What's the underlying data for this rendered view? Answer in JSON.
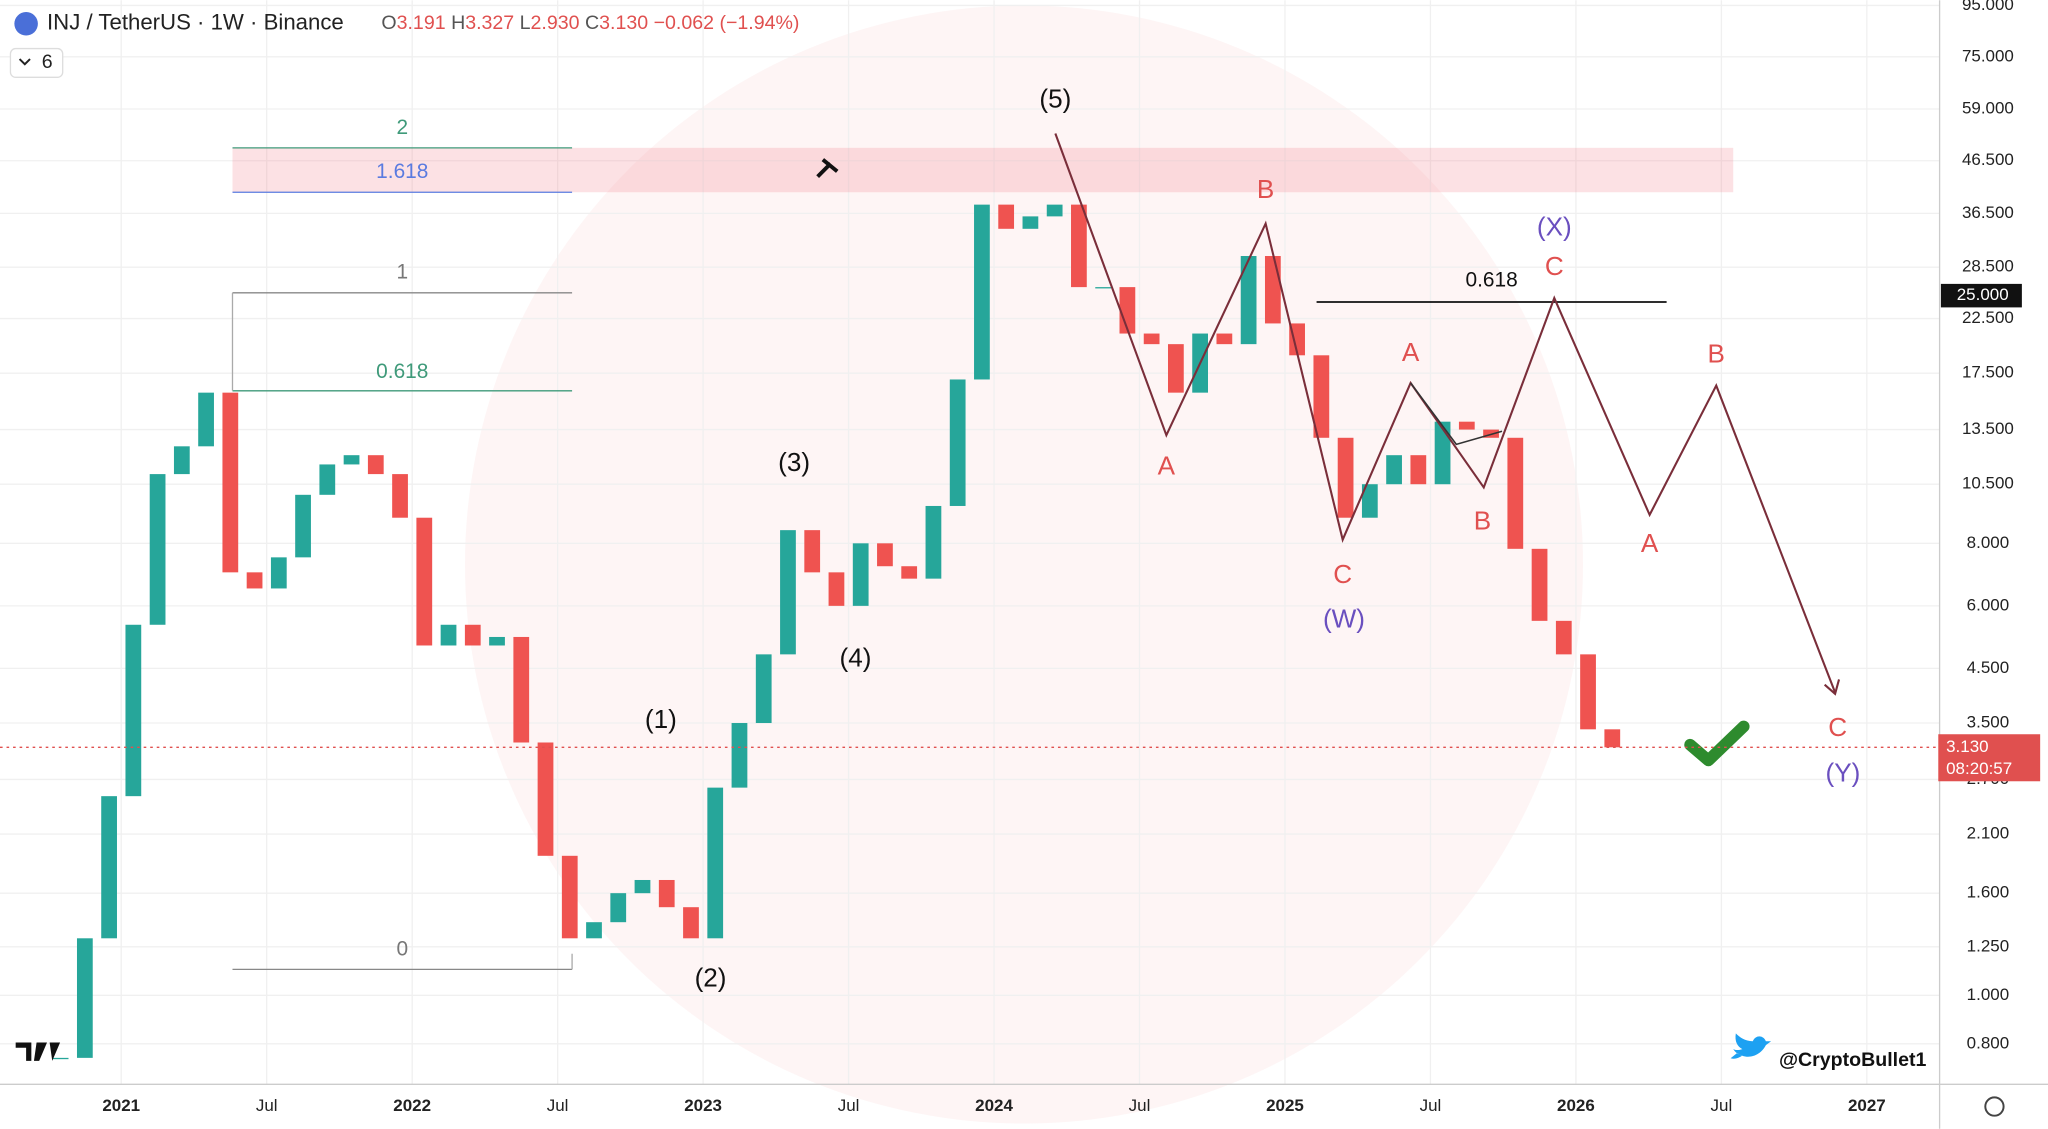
{
  "header": {
    "symbol": "INJ / TetherUS · 1W · Binance",
    "ohlc": [
      {
        "key": "O",
        "value": "3.191"
      },
      {
        "key": "H",
        "value": "3.327"
      },
      {
        "key": "L",
        "value": "2.930"
      },
      {
        "key": "C",
        "value": "3.130"
      }
    ],
    "change": "−0.062 (−1.94%)",
    "indicators": "6"
  },
  "chart_data": {
    "type": "candlestick",
    "log_scale": true,
    "x": [
      "2020-10",
      "2020-11",
      "2020-12",
      "2021-01",
      "2021-02",
      "2021-03",
      "2021-04",
      "2021-05",
      "2021-06",
      "2021-07",
      "2021-08",
      "2021-09",
      "2021-10",
      "2021-11",
      "2021-12",
      "2022-01",
      "2022-02",
      "2022-03",
      "2022-04",
      "2022-05",
      "2022-06",
      "2022-07",
      "2022-08",
      "2022-09",
      "2022-10",
      "2022-11",
      "2022-12",
      "2023-01",
      "2023-02",
      "2023-03",
      "2023-04",
      "2023-05",
      "2023-06",
      "2023-07",
      "2023-08",
      "2023-09",
      "2023-10",
      "2023-11",
      "2023-12",
      "2024-01",
      "2024-02",
      "2024-03",
      "2024-04",
      "2024-05",
      "2024-06",
      "2024-07",
      "2024-08",
      "2024-09",
      "2024-10",
      "2024-11",
      "2024-12",
      "2025-01",
      "2025-02",
      "2025-03",
      "2025-04",
      "2025-05",
      "2025-06",
      "2025-07",
      "2025-08",
      "2025-09",
      "2025-10",
      "2025-11",
      "2025-12",
      "2026-01",
      "2026-02"
    ],
    "close": [
      0.75,
      1.3,
      2.5,
      5.5,
      11,
      12.5,
      16,
      7,
      6.5,
      7.5,
      10,
      11.5,
      12,
      11,
      9,
      5,
      5.5,
      5,
      5.2,
      3.2,
      1.9,
      1.3,
      1.4,
      1.6,
      1.7,
      1.5,
      1.3,
      2.6,
      3.5,
      4.8,
      8.5,
      7,
      6,
      8,
      7.2,
      6.8,
      9.5,
      17,
      38,
      34,
      36,
      38,
      26,
      26,
      21,
      20,
      16,
      21,
      20,
      30,
      22,
      19,
      13,
      9,
      10.5,
      12,
      10.5,
      14,
      13.5,
      13,
      7.8,
      5.6,
      4.8,
      3.4,
      3.13
    ],
    "up_color": "#26a69a",
    "down_color": "#ef5350",
    "xlim": [
      "2020-08",
      "2027-04"
    ],
    "ylim": [
      0.664,
      97.3
    ],
    "yticks": [
      {
        "value": 95,
        "label": "95.000"
      },
      {
        "value": 75,
        "label": "75.000"
      },
      {
        "value": 59,
        "label": "59.000"
      },
      {
        "value": 46.5,
        "label": "46.500"
      },
      {
        "value": 36.5,
        "label": "36.500"
      },
      {
        "value": 28.5,
        "label": "28.500"
      },
      {
        "value": 22.5,
        "label": "22.500"
      },
      {
        "value": 17.5,
        "label": "17.500"
      },
      {
        "value": 13.5,
        "label": "13.500"
      },
      {
        "value": 10.5,
        "label": "10.500"
      },
      {
        "value": 8,
        "label": "8.000"
      },
      {
        "value": 6,
        "label": "6.000"
      },
      {
        "value": 4.5,
        "label": "4.500"
      },
      {
        "value": 3.5,
        "label": "3.500"
      },
      {
        "value": 2.7,
        "label": "2.700"
      },
      {
        "value": 2.1,
        "label": "2.100"
      },
      {
        "value": 1.6,
        "label": "1.600"
      },
      {
        "value": 1.25,
        "label": "1.250"
      },
      {
        "value": 1,
        "label": "1.000"
      },
      {
        "value": 0.8,
        "label": "0.800"
      }
    ],
    "xticks": [
      {
        "value": "2021-01",
        "label": "2021"
      },
      {
        "value": "2021-07",
        "label": "Jul"
      },
      {
        "value": "2022-01",
        "label": "2022"
      },
      {
        "value": "2022-07",
        "label": "Jul"
      },
      {
        "value": "2023-01",
        "label": "2023"
      },
      {
        "value": "2023-07",
        "label": "Jul"
      },
      {
        "value": "2024-01",
        "label": "2024"
      },
      {
        "value": "2024-07",
        "label": "Jul"
      },
      {
        "value": "2025-01",
        "label": "2025"
      },
      {
        "value": "2025-07",
        "label": "Jul"
      },
      {
        "value": "2026-01",
        "label": "2026"
      },
      {
        "value": "2026-07",
        "label": "Jul"
      },
      {
        "value": "2027-01",
        "label": "2027"
      }
    ],
    "grid": true,
    "last_price": {
      "value": 3.13,
      "label": "3.130"
    },
    "countdown": "08:20:57",
    "level": {
      "value": 25,
      "label": "25.000"
    },
    "fib_labels": [
      "2",
      "1.618",
      "1",
      "0.618",
      "0"
    ],
    "annotations": [
      {
        "text": "(5)",
        "color": "#111"
      },
      {
        "text": "(3)",
        "color": "#111"
      },
      {
        "text": "(4)",
        "color": "#111"
      },
      {
        "text": "(1)",
        "color": "#111"
      },
      {
        "text": "(2)",
        "color": "#111"
      },
      {
        "text": "A",
        "color": "#e0504f"
      },
      {
        "text": "B",
        "color": "#e0504f"
      },
      {
        "text": "(X)",
        "color": "#6a4fbf"
      },
      {
        "text": "C",
        "color": "#e0504f"
      },
      {
        "text": "0.618",
        "color": "#111"
      },
      {
        "text": "A",
        "color": "#e0504f"
      },
      {
        "text": "B",
        "color": "#e0504f"
      },
      {
        "text": "C",
        "color": "#e0504f"
      },
      {
        "text": "(W)",
        "color": "#6a4fbf"
      },
      {
        "text": "B",
        "color": "#e0504f"
      },
      {
        "text": "A",
        "color": "#e0504f"
      },
      {
        "text": "C",
        "color": "#e0504f"
      },
      {
        "text": "(Y)",
        "color": "#6a4fbf"
      }
    ],
    "watermark": "@CryptoBullet1"
  }
}
